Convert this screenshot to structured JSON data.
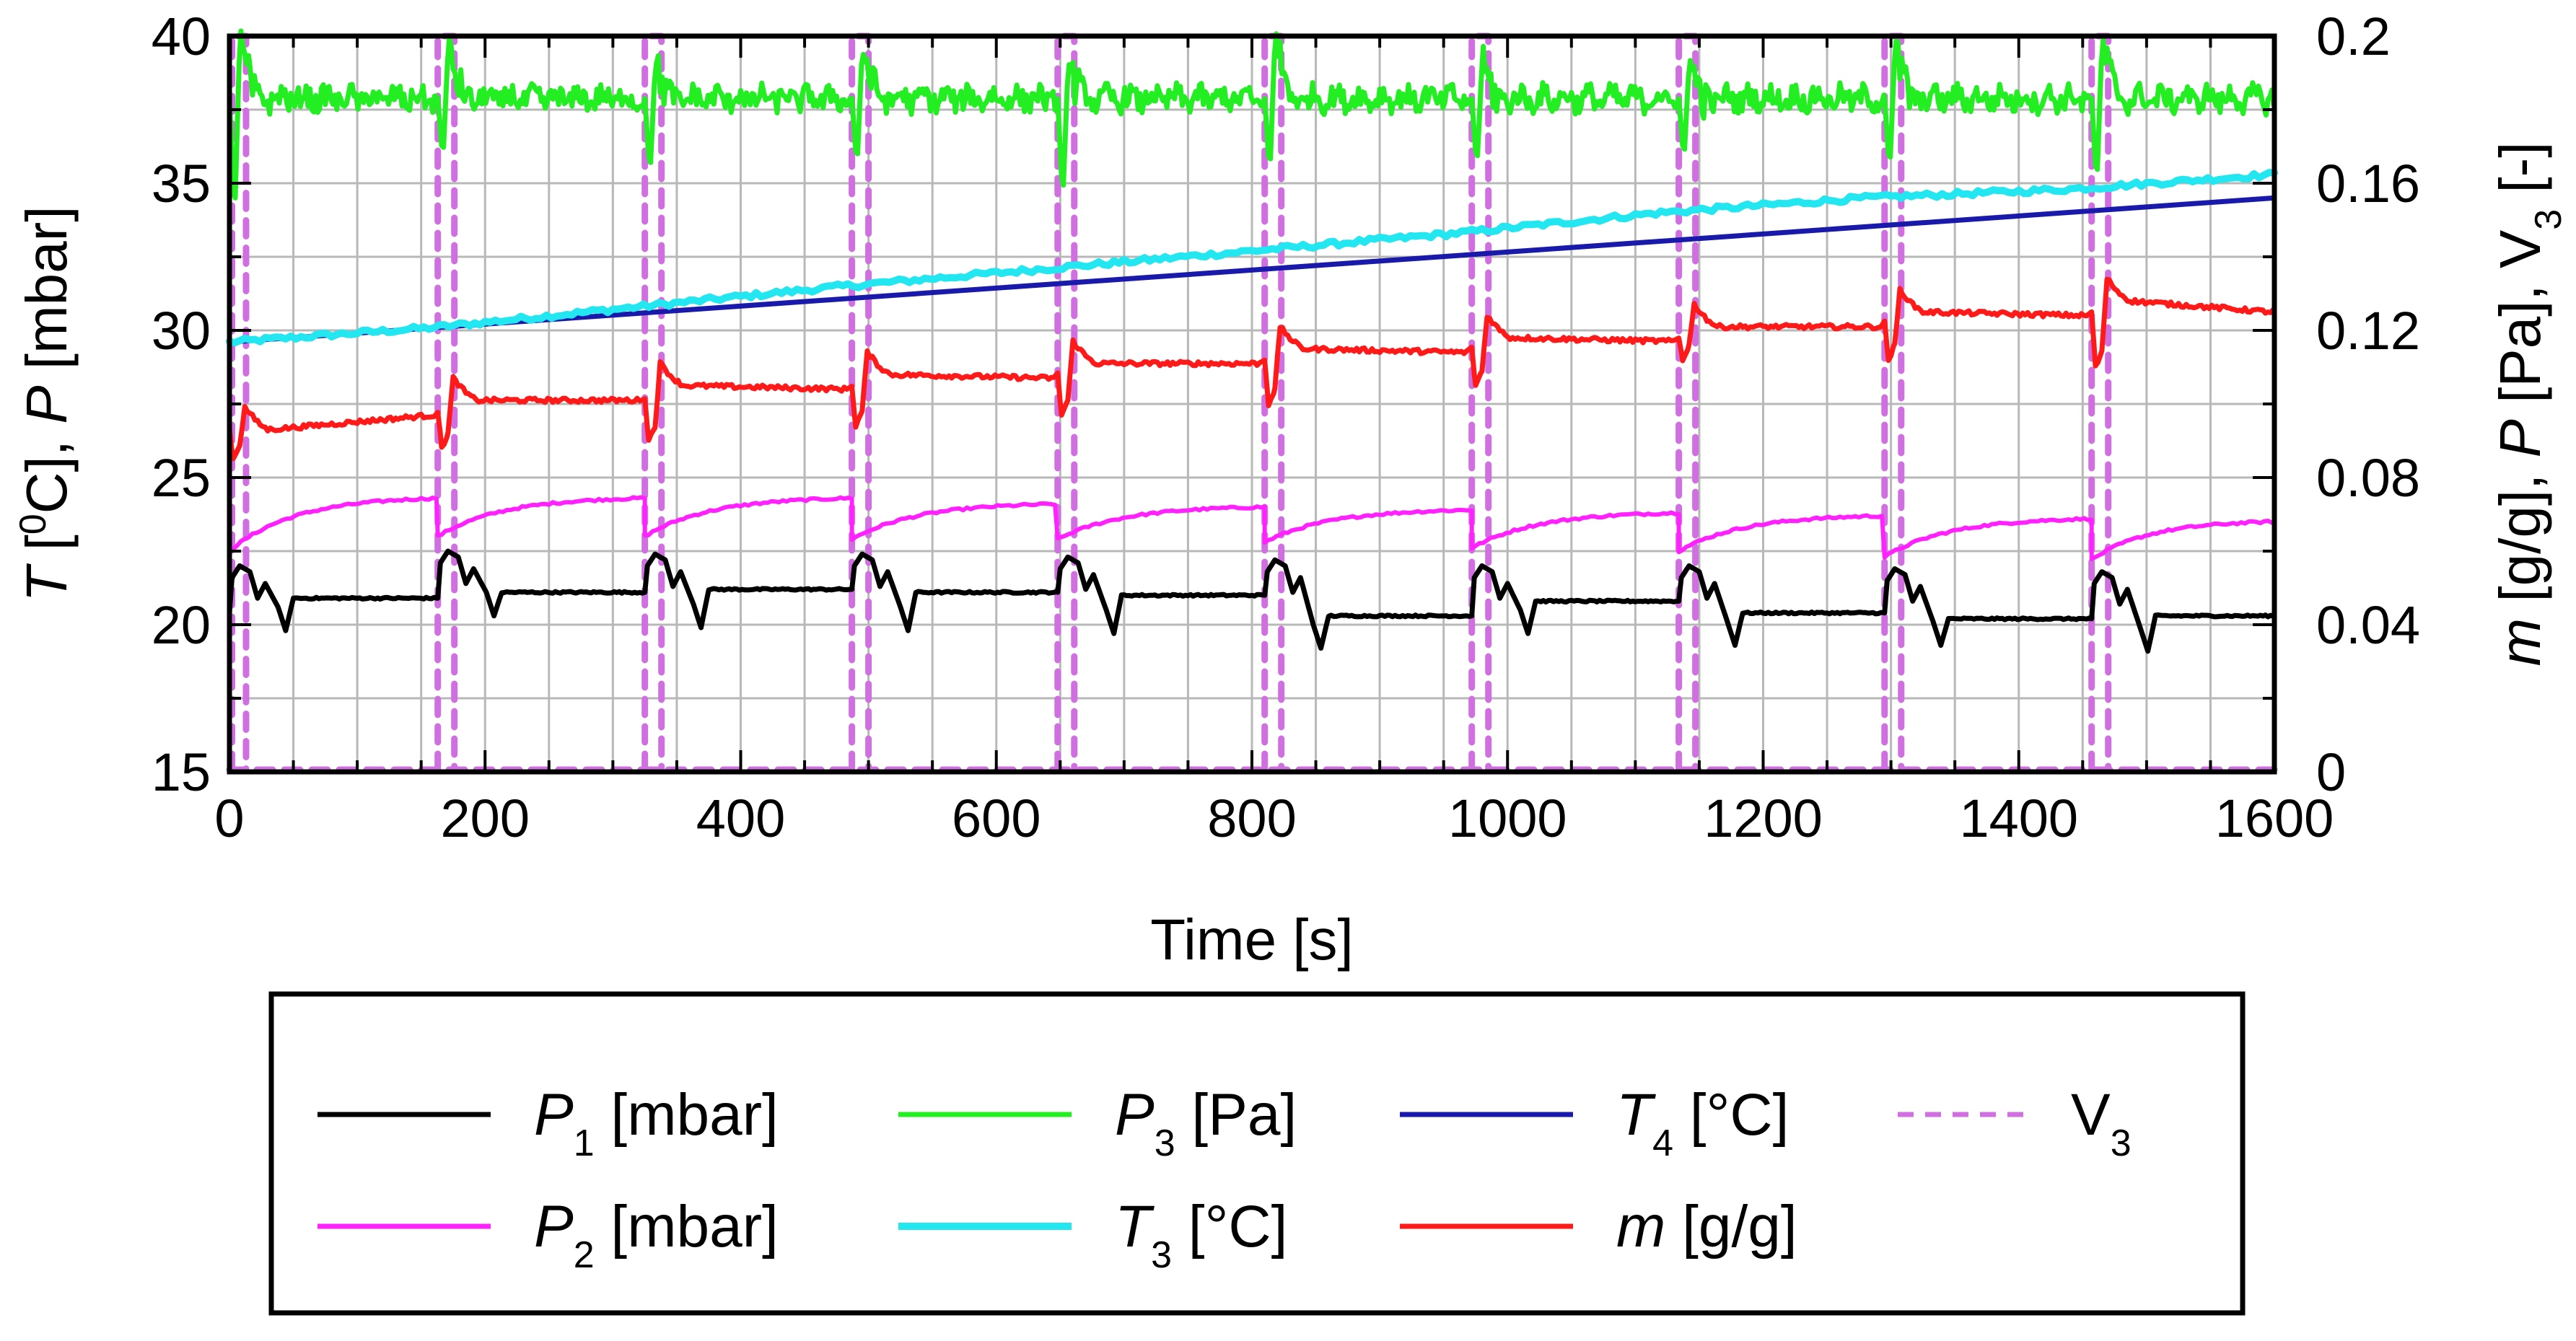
{
  "chart_data": {
    "type": "line",
    "title": "",
    "xlabel": "Time [s]",
    "xlim": [
      0,
      1600
    ],
    "xticks": [
      "0",
      "200",
      "400",
      "600",
      "800",
      "1000",
      "1200",
      "1400",
      "1600"
    ],
    "ylabel_left": {
      "parts": [
        "T",
        " [",
        "0",
        "C], ",
        "P",
        " [mbar]"
      ]
    },
    "ylim_left": [
      15,
      40
    ],
    "yticks_left": [
      "15",
      "20",
      "25",
      "30",
      "35",
      "40"
    ],
    "ylabel_right": {
      "parts": [
        "m",
        " [g/g], ",
        "P",
        " [Pa], V",
        "3",
        " [-]"
      ]
    },
    "ylim_right": [
      0,
      0.2
    ],
    "yticks_right": [
      "0",
      "0.04",
      "0.08",
      "0.12",
      "0.16",
      "0.2"
    ],
    "grid": true,
    "cycle_starts_s": [
      0,
      163,
      325,
      487,
      648,
      810,
      972,
      1134,
      1295,
      1457
    ],
    "series": [
      {
        "key": "P1",
        "axis": "left",
        "color": "#000000",
        "dash": false,
        "legend": {
          "sym": "P",
          "sub": "1",
          "unit": " [mbar]"
        },
        "plateau_base": [
          21.0,
          20.9,
          21.1,
          21.2,
          21.1,
          21.0,
          20.3,
          20.8,
          20.4,
          20.2,
          20.3
        ],
        "spike_peak": [
          22.0,
          22.5,
          22.4,
          22.4,
          22.3,
          22.2,
          22.0,
          22.0,
          21.9,
          21.8
        ],
        "dip_min": [
          19.8,
          20.3,
          19.9,
          19.8,
          19.7,
          19.2,
          19.7,
          19.3,
          19.3,
          19.1
        ]
      },
      {
        "key": "P2",
        "axis": "left",
        "color": "#ff22ff",
        "dash": false,
        "legend": {
          "sym": "P",
          "sub": "2",
          "unit": " [mbar]"
        },
        "start_level": [
          22.8,
          23.0,
          23.0,
          22.9,
          22.9,
          22.8,
          22.6,
          22.5,
          22.3,
          22.2
        ],
        "end_level": [
          24.3,
          24.3,
          24.3,
          24.1,
          24.0,
          23.9,
          23.8,
          23.7,
          23.6,
          23.5,
          23.4
        ]
      },
      {
        "key": "P3",
        "axis": "right",
        "color": "#22ee22",
        "dash": false,
        "legend": {
          "sym": "P",
          "sub": "3",
          "unit": " [Pa]"
        },
        "baseline": 0.183,
        "dip_min": [
          0.15,
          0.166,
          0.162,
          0.164,
          0.155,
          0.162,
          0.164,
          0.166,
          0.163,
          0.159
        ],
        "peak_max": [
          0.198,
          0.196,
          0.191,
          0.196,
          0.191,
          0.199,
          0.192,
          0.192,
          0.196,
          0.197
        ]
      },
      {
        "key": "T3",
        "axis": "left",
        "color": "#22e6f0",
        "dash": false,
        "legend": {
          "sym": "T",
          "sub": "3",
          "unit": " [°C]"
        },
        "x": [
          0,
          160,
          320,
          480,
          640,
          800,
          960,
          1120,
          1280,
          1440,
          1600
        ],
        "values": [
          29.6,
          30.1,
          30.8,
          31.5,
          32.1,
          32.7,
          33.3,
          34.0,
          34.5,
          34.8,
          35.3
        ]
      },
      {
        "key": "T4",
        "axis": "left",
        "color": "#1a1aaa",
        "dash": false,
        "legend": {
          "sym": "T",
          "sub": "4",
          "unit": " [°C]"
        },
        "x": [
          0,
          1600
        ],
        "values": [
          29.6,
          34.5
        ]
      },
      {
        "key": "m",
        "axis": "right",
        "color": "#ff1a1a",
        "dash": false,
        "legend": {
          "sym": "m",
          "sub": "",
          "unit": " [g/g]"
        },
        "end_level": [
          0.093,
          0.098,
          0.102,
          0.105,
          0.108,
          0.112,
          0.115,
          0.118,
          0.122,
          0.125,
          0.126
        ],
        "dip_min": [
          0.085,
          0.088,
          0.09,
          0.094,
          0.097,
          0.1,
          0.105,
          0.112,
          0.112,
          0.11
        ]
      },
      {
        "key": "V3",
        "axis": "right",
        "color": "#d070e0",
        "dash": true,
        "legend": {
          "sym": "",
          "sub": "3",
          "unit": "V"
        },
        "open_value": 0.2,
        "closed_value": 0,
        "open_duration_s": 13
      }
    ]
  }
}
